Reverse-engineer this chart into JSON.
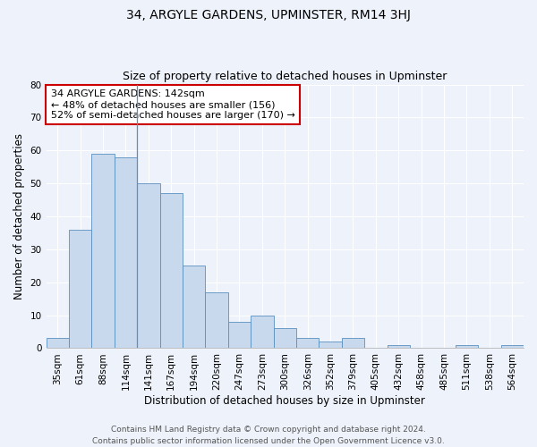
{
  "title": "34, ARGYLE GARDENS, UPMINSTER, RM14 3HJ",
  "subtitle": "Size of property relative to detached houses in Upminster",
  "xlabel": "Distribution of detached houses by size in Upminster",
  "ylabel": "Number of detached properties",
  "bar_labels": [
    "35sqm",
    "61sqm",
    "88sqm",
    "114sqm",
    "141sqm",
    "167sqm",
    "194sqm",
    "220sqm",
    "247sqm",
    "273sqm",
    "300sqm",
    "326sqm",
    "352sqm",
    "379sqm",
    "405sqm",
    "432sqm",
    "458sqm",
    "485sqm",
    "511sqm",
    "538sqm",
    "564sqm"
  ],
  "bar_values": [
    3,
    36,
    59,
    58,
    50,
    47,
    25,
    17,
    8,
    10,
    6,
    3,
    2,
    3,
    0,
    1,
    0,
    0,
    1,
    0,
    1
  ],
  "bar_color": "#c8d9ee",
  "bar_edge_color": "#5a8fc0",
  "ylim": [
    0,
    80
  ],
  "yticks": [
    0,
    10,
    20,
    30,
    40,
    50,
    60,
    70,
    80
  ],
  "annotation_title": "34 ARGYLE GARDENS: 142sqm",
  "annotation_line1": "← 48% of detached houses are smaller (156)",
  "annotation_line2": "52% of semi-detached houses are larger (170) →",
  "annotation_box_color": "#ffffff",
  "annotation_box_edge_color": "#cc0000",
  "vline_x_index": 4,
  "footer_line1": "Contains HM Land Registry data © Crown copyright and database right 2024.",
  "footer_line2": "Contains public sector information licensed under the Open Government Licence v3.0.",
  "background_color": "#eef2fa",
  "grid_color": "#ffffff",
  "title_fontsize": 10,
  "subtitle_fontsize": 9,
  "axis_label_fontsize": 8.5,
  "tick_fontsize": 7.5,
  "annotation_fontsize": 8,
  "footer_fontsize": 6.5
}
